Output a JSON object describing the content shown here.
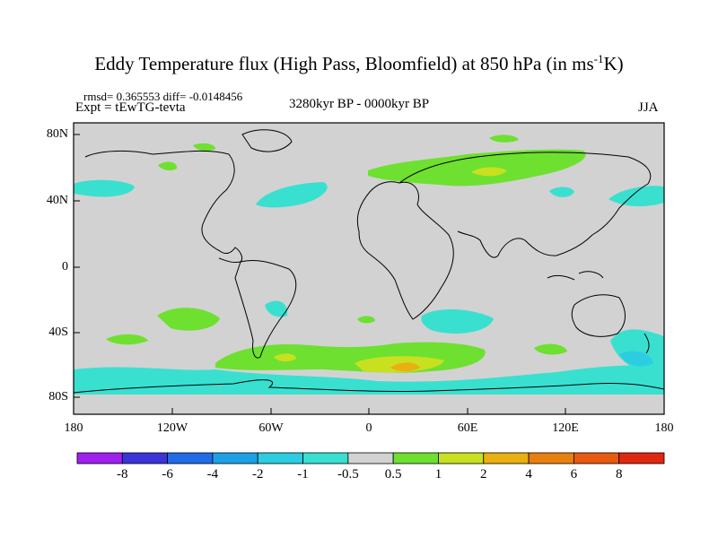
{
  "title_main": "Eddy Temperature flux (High Pass, Bloomfield) at 850 hPa (in ms",
  "title_sup": "-1",
  "title_end": "K)",
  "stats": "rmsd= 0.365553 diff= -0.0148456",
  "expt": "Expt = tEwTG-tevta",
  "period": "3280kyr BP - 0000kyr BP",
  "season": "JJA",
  "lat_labels": [
    "80N",
    "40N",
    "0",
    "40S",
    "80S"
  ],
  "lon_labels": [
    "180",
    "120W",
    "60W",
    "0",
    "60E",
    "120E",
    "180"
  ],
  "colorbar": {
    "labels": [
      "-8",
      "-6",
      "-4",
      "-2",
      "-1",
      "-0.5",
      "0.5",
      "1",
      "2",
      "4",
      "6",
      "8"
    ],
    "colors": [
      "#a020f0",
      "#3c33d8",
      "#1f6ce6",
      "#1ea0e6",
      "#2ccde0",
      "#39e0d0",
      "#d2d2d2",
      "#6ee030",
      "#c8e020",
      "#e8b010",
      "#e88010",
      "#e85a10",
      "#e02810"
    ]
  },
  "map_colors": {
    "ocean_land_neutral": "#d2d2d2",
    "coast": "#000000"
  }
}
